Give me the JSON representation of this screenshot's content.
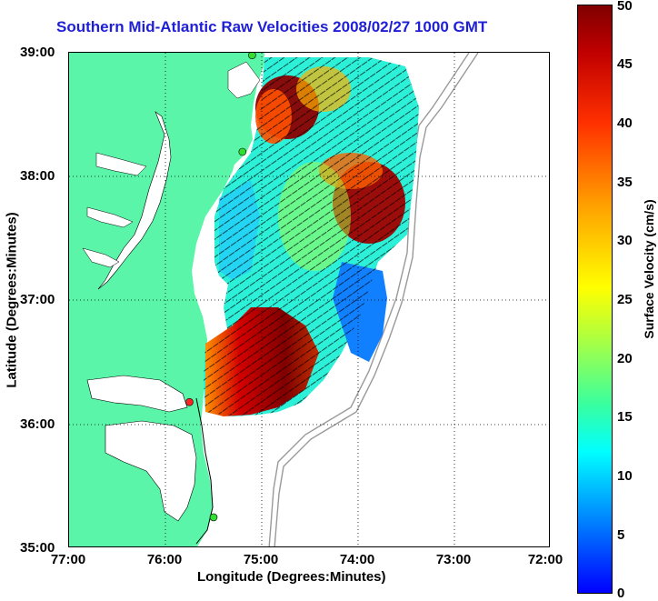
{
  "title": "Southern Mid-Atlantic Raw Velocities 2008/02/27 1000 GMT",
  "map": {
    "x_axis": {
      "label": "Longitude (Degrees:Minutes)",
      "ticks": [
        "77:00",
        "76:00",
        "75:00",
        "74:00",
        "73:00",
        "72:00"
      ],
      "range": [
        -77,
        -72
      ]
    },
    "y_axis": {
      "label": "Latitude (Degrees:Minutes)",
      "ticks": [
        "39:00",
        "38:00",
        "37:00",
        "36:00",
        "35:00"
      ],
      "range": [
        35,
        39
      ]
    },
    "grid": "dotted",
    "land_color": "#5af5a8",
    "radar_sites": [
      {
        "lon": -75.1,
        "lat": 38.98,
        "status": "active",
        "color": "#33dd33"
      },
      {
        "lon": -75.2,
        "lat": 38.2,
        "status": "active",
        "color": "#33dd33"
      },
      {
        "lon": -75.75,
        "lat": 36.18,
        "status": "inactive",
        "color": "#ff2222"
      },
      {
        "lon": -75.5,
        "lat": 35.25,
        "status": "active",
        "color": "#33dd33"
      }
    ]
  },
  "colorbar": {
    "label": "Surface Velocity (cm/s)",
    "ticks": [
      "50",
      "45",
      "40",
      "35",
      "30",
      "25",
      "20",
      "15",
      "10",
      "5",
      "0"
    ],
    "range": [
      0,
      50
    ]
  }
}
